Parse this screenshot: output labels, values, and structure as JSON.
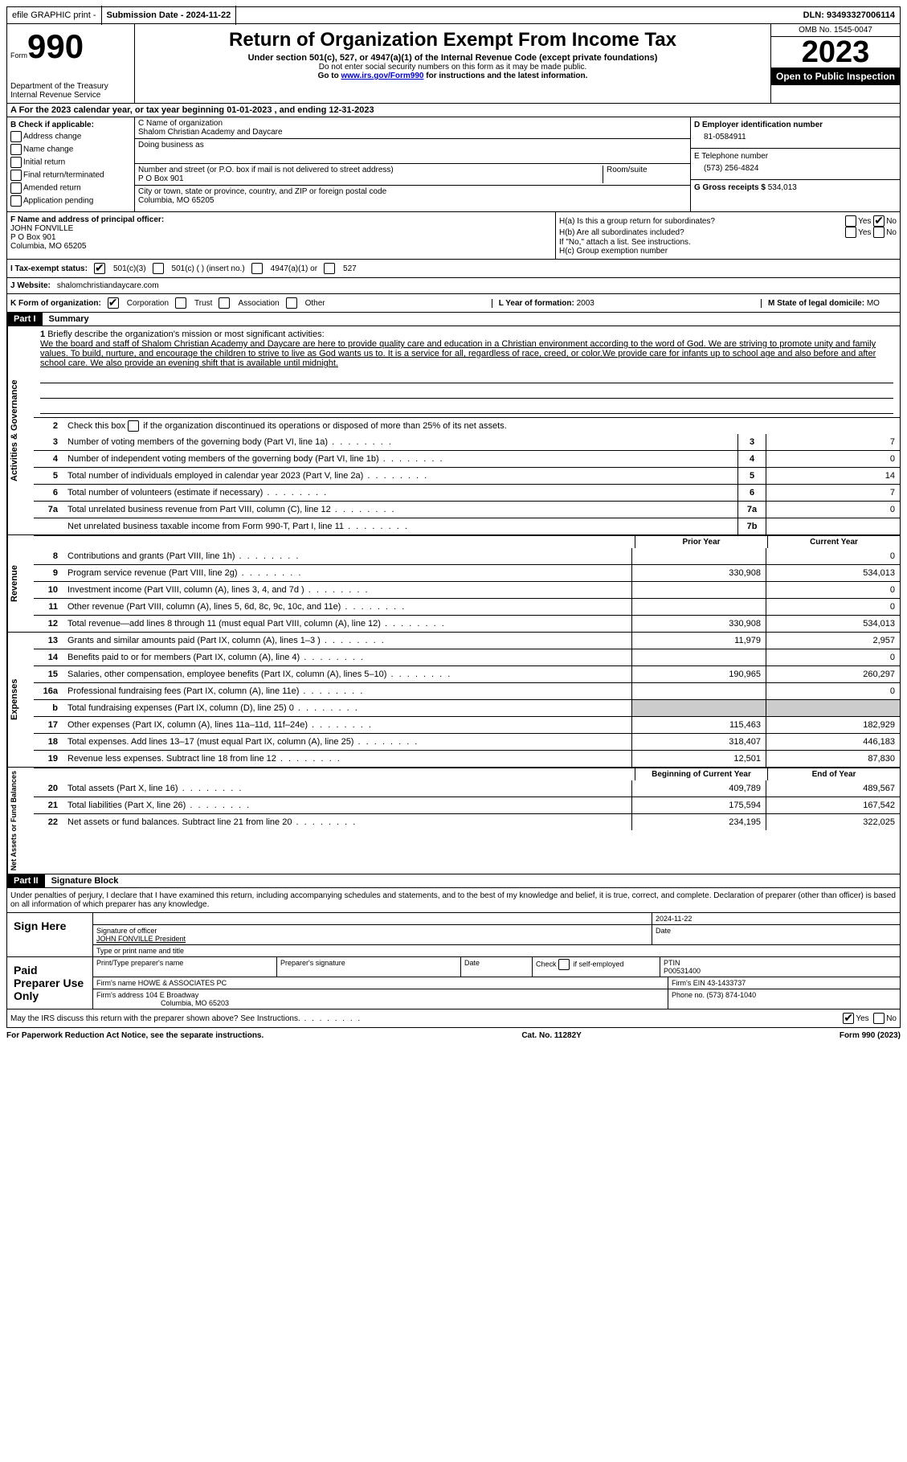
{
  "top_bar": {
    "efile": "efile GRAPHIC print -",
    "submission_label": "Submission Date - 2024-11-22",
    "dln": "DLN: 93493327006114"
  },
  "header": {
    "form_label": "Form",
    "form_number": "990",
    "dept": "Department of the Treasury Internal Revenue Service",
    "title": "Return of Organization Exempt From Income Tax",
    "subtitle": "Under section 501(c), 527, or 4947(a)(1) of the Internal Revenue Code (except private foundations)",
    "ssn_warning": "Do not enter social security numbers on this form as it may be made public.",
    "goto_prefix": "Go to ",
    "goto_link": "www.irs.gov/Form990",
    "goto_suffix": " for instructions and the latest information.",
    "omb": "OMB No. 1545-0047",
    "year": "2023",
    "inspection": "Open to Public Inspection"
  },
  "section_a": "A  For the 2023 calendar year, or tax year beginning 01-01-2023    , and ending 12-31-2023",
  "section_b": {
    "label": "B Check if applicable:",
    "opts": [
      "Address change",
      "Name change",
      "Initial return",
      "Final return/terminated",
      "Amended return",
      "Application pending"
    ]
  },
  "section_c": {
    "name_label": "C Name of organization",
    "name": "Shalom Christian Academy and Daycare",
    "dba_label": "Doing business as",
    "addr_label": "Number and street (or P.O. box if mail is not delivered to street address)",
    "room_label": "Room/suite",
    "addr": "P O Box 901",
    "city_label": "City or town, state or province, country, and ZIP or foreign postal code",
    "city": "Columbia, MO  65205"
  },
  "section_d": {
    "ein_label": "D Employer identification number",
    "ein": "81-0584911",
    "phone_label": "E Telephone number",
    "phone": "(573) 256-4824",
    "gross_label": "G Gross receipts $ ",
    "gross": "534,013"
  },
  "section_f": {
    "label": "F  Name and address of principal officer:",
    "name": "JOHN FONVILLE",
    "addr1": "P O Box 901",
    "addr2": "Columbia, MO  65205"
  },
  "section_h": {
    "ha": "H(a)  Is this a group return for subordinates?",
    "hb": "H(b)  Are all subordinates included?",
    "hb_note": "If \"No,\" attach a list. See instructions.",
    "hc": "H(c)  Group exemption number  ",
    "yes": "Yes",
    "no": "No"
  },
  "tax_status": {
    "label": "I  Tax-exempt status:",
    "opt1": "501(c)(3)",
    "opt2": "501(c) (  ) (insert no.)",
    "opt3": "4947(a)(1) or",
    "opt4": "527"
  },
  "website": {
    "label": "J  Website: ",
    "value": "shalomchristiandaycare.com"
  },
  "form_org": {
    "label": "K Form of organization:",
    "opts": [
      "Corporation",
      "Trust",
      "Association",
      "Other"
    ],
    "year_label": "L Year of formation: ",
    "year": "2003",
    "state_label": "M State of legal domicile: ",
    "state": "MO"
  },
  "part1": {
    "header": "Part I",
    "title": "Summary",
    "q1_label": "1",
    "q1_text": "Briefly describe the organization's mission or most significant activities:",
    "q1_mission": "We the board and staff of Shalom Christian Academy and Daycare are here to provide quality care and education in a Christian environment according to the word of God. We are striving to promote unity and family values. To build, nurture, and encourage the children to strive to live as God wants us to. It is a service for all, regardless of race, creed, or color.We provide care for infants up to school age and also before and after school care. We also provide an evening shift that is available until midnight.",
    "q2": "Check this box       if the organization discontinued its operations or disposed of more than 25% of its net assets.",
    "sections": {
      "activities": "Activities & Governance",
      "revenue": "Revenue",
      "expenses": "Expenses",
      "netassets": "Net Assets or Fund Balances"
    },
    "lines_simple": [
      {
        "n": "3",
        "t": "Number of voting members of the governing body (Part VI, line 1a)",
        "box": "3",
        "v": "7"
      },
      {
        "n": "4",
        "t": "Number of independent voting members of the governing body (Part VI, line 1b)",
        "box": "4",
        "v": "0"
      },
      {
        "n": "5",
        "t": "Total number of individuals employed in calendar year 2023 (Part V, line 2a)",
        "box": "5",
        "v": "14"
      },
      {
        "n": "6",
        "t": "Total number of volunteers (estimate if necessary)",
        "box": "6",
        "v": "7"
      },
      {
        "n": "7a",
        "t": "Total unrelated business revenue from Part VIII, column (C), line 12",
        "box": "7a",
        "v": "0"
      },
      {
        "n": "",
        "t": "Net unrelated business taxable income from Form 990-T, Part I, line 11",
        "box": "7b",
        "v": ""
      }
    ],
    "col_headers": {
      "prior": "Prior Year",
      "current": "Current Year",
      "begin": "Beginning of Current Year",
      "end": "End of Year"
    },
    "revenue_lines": [
      {
        "n": "8",
        "t": "Contributions and grants (Part VIII, line 1h)",
        "p": "",
        "c": "0"
      },
      {
        "n": "9",
        "t": "Program service revenue (Part VIII, line 2g)",
        "p": "330,908",
        "c": "534,013"
      },
      {
        "n": "10",
        "t": "Investment income (Part VIII, column (A), lines 3, 4, and 7d )",
        "p": "",
        "c": "0"
      },
      {
        "n": "11",
        "t": "Other revenue (Part VIII, column (A), lines 5, 6d, 8c, 9c, 10c, and 11e)",
        "p": "",
        "c": "0"
      },
      {
        "n": "12",
        "t": "Total revenue—add lines 8 through 11 (must equal Part VIII, column (A), line 12)",
        "p": "330,908",
        "c": "534,013"
      }
    ],
    "expense_lines": [
      {
        "n": "13",
        "t": "Grants and similar amounts paid (Part IX, column (A), lines 1–3 )",
        "p": "11,979",
        "c": "2,957"
      },
      {
        "n": "14",
        "t": "Benefits paid to or for members (Part IX, column (A), line 4)",
        "p": "",
        "c": "0"
      },
      {
        "n": "15",
        "t": "Salaries, other compensation, employee benefits (Part IX, column (A), lines 5–10)",
        "p": "190,965",
        "c": "260,297"
      },
      {
        "n": "16a",
        "t": "Professional fundraising fees (Part IX, column (A), line 11e)",
        "p": "",
        "c": "0"
      },
      {
        "n": "b",
        "t": "Total fundraising expenses (Part IX, column (D), line 25) 0",
        "p": "GREY",
        "c": "GREY"
      },
      {
        "n": "17",
        "t": "Other expenses (Part IX, column (A), lines 11a–11d, 11f–24e)",
        "p": "115,463",
        "c": "182,929"
      },
      {
        "n": "18",
        "t": "Total expenses. Add lines 13–17 (must equal Part IX, column (A), line 25)",
        "p": "318,407",
        "c": "446,183"
      },
      {
        "n": "19",
        "t": "Revenue less expenses. Subtract line 18 from line 12",
        "p": "12,501",
        "c": "87,830"
      }
    ],
    "net_lines": [
      {
        "n": "20",
        "t": "Total assets (Part X, line 16)",
        "p": "409,789",
        "c": "489,567"
      },
      {
        "n": "21",
        "t": "Total liabilities (Part X, line 26)",
        "p": "175,594",
        "c": "167,542"
      },
      {
        "n": "22",
        "t": "Net assets or fund balances. Subtract line 21 from line 20",
        "p": "234,195",
        "c": "322,025"
      }
    ]
  },
  "part2": {
    "header": "Part II",
    "title": "Signature Block",
    "declaration": "Under penalties of perjury, I declare that I have examined this return, including accompanying schedules and statements, and to the best of my knowledge and belief, it is true, correct, and complete. Declaration of preparer (other than officer) is based on all information of which preparer has any knowledge.",
    "sign_here": "Sign Here",
    "sig_date": "2024-11-22",
    "sig_officer_label": "Signature of officer",
    "sig_officer": "JOHN FONVILLE  President",
    "sig_type_label": "Type or print name and title",
    "paid_prep": "Paid Preparer Use Only",
    "prep_name_label": "Print/Type preparer's name",
    "prep_sig_label": "Preparer's signature",
    "date_label": "Date",
    "check_self": "Check         if self-employed",
    "ptin_label": "PTIN",
    "ptin": "P00531400",
    "firm_name_label": "Firm's name      ",
    "firm_name": "HOWE & ASSOCIATES PC",
    "firm_ein_label": "Firm's EIN  ",
    "firm_ein": "43-1433737",
    "firm_addr_label": "Firm's address ",
    "firm_addr1": "104 E Broadway",
    "firm_addr2": "Columbia, MO  65203",
    "firm_phone_label": "Phone no. ",
    "firm_phone": "(573) 874-1040",
    "discuss": "May the IRS discuss this return with the preparer shown above? See Instructions.",
    "yes": "Yes",
    "no": "No"
  },
  "footer": {
    "paperwork": "For Paperwork Reduction Act Notice, see the separate instructions.",
    "cat": "Cat. No. 11282Y",
    "form": "Form 990 (2023)"
  }
}
